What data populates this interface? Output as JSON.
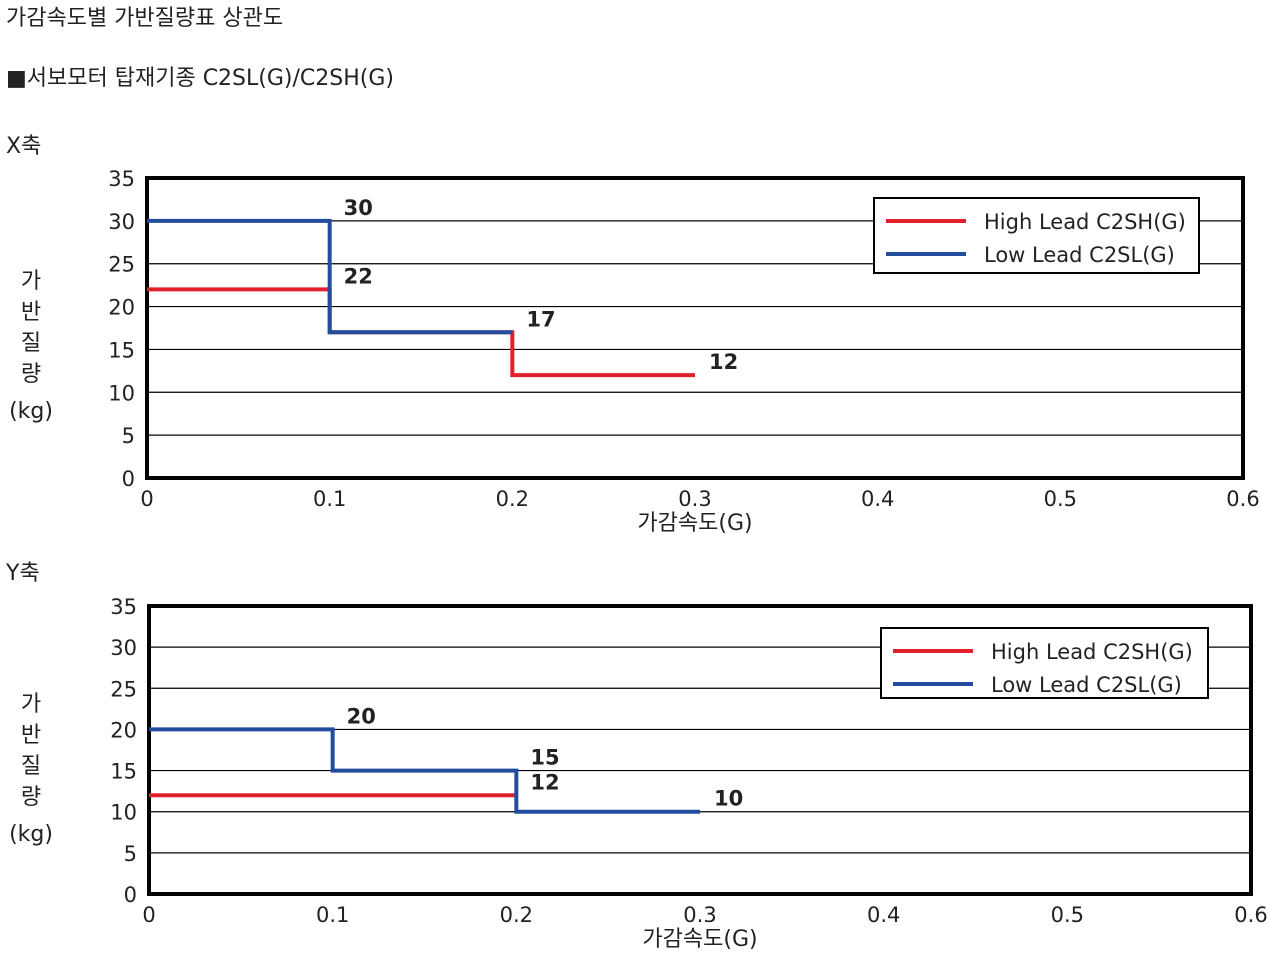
{
  "page": {
    "title": "가감속도별 가반질량표 상관도",
    "subtitle": "■서보모터 탑재기종 C2SL(G)/C2SH(G)"
  },
  "colors": {
    "high": "#e2202b",
    "low": "#224c9c",
    "grid": "#000000"
  },
  "chart_data": [
    {
      "type": "line",
      "title": "X축",
      "xlabel": "가감속도(G)",
      "ylabel": "가반질량(kg)",
      "xlim": [
        0,
        0.6
      ],
      "ylim": [
        0,
        35
      ],
      "x_ticks": [
        "0",
        "0.1",
        "0.2",
        "0.3",
        "0.4",
        "0.5",
        "0.6"
      ],
      "y_ticks": [
        "35",
        "30",
        "25",
        "20",
        "15",
        "10",
        "5",
        "0"
      ],
      "grid": true,
      "legend": "top-right",
      "step": true,
      "series": [
        {
          "name": "High Lead C2SH(G)",
          "color": "#e2202b",
          "points": [
            [
              0,
              22
            ],
            [
              0.1,
              22
            ],
            [
              0.1,
              17
            ],
            [
              0.2,
              17
            ],
            [
              0.2,
              12
            ],
            [
              0.3,
              12
            ]
          ]
        },
        {
          "name": "Low Lead C2SL(G)",
          "color": "#224c9c",
          "points": [
            [
              0,
              30
            ],
            [
              0.1,
              30
            ],
            [
              0.1,
              17
            ],
            [
              0.2,
              17
            ]
          ]
        }
      ],
      "data_labels": [
        {
          "x": 0.1,
          "y": 30,
          "text": "30"
        },
        {
          "x": 0.1,
          "y": 22,
          "text": "22"
        },
        {
          "x": 0.2,
          "y": 17,
          "text": "17"
        },
        {
          "x": 0.3,
          "y": 12,
          "text": "12"
        }
      ]
    },
    {
      "type": "line",
      "title": "Y축",
      "xlabel": "가감속도(G)",
      "ylabel": "가반질량(kg)",
      "xlim": [
        0,
        0.6
      ],
      "ylim": [
        0,
        35
      ],
      "x_ticks": [
        "0",
        "0.1",
        "0.2",
        "0.3",
        "0.4",
        "0.5",
        "0.6"
      ],
      "y_ticks": [
        "35",
        "30",
        "25",
        "20",
        "15",
        "10",
        "5",
        "0"
      ],
      "grid": true,
      "legend": "top-right",
      "step": true,
      "series": [
        {
          "name": "High Lead C2SH(G)",
          "color": "#e2202b",
          "points": [
            [
              0,
              12
            ],
            [
              0.2,
              12
            ]
          ]
        },
        {
          "name": "Low Lead C2SL(G)",
          "color": "#224c9c",
          "points": [
            [
              0,
              20
            ],
            [
              0.1,
              20
            ],
            [
              0.1,
              15
            ],
            [
              0.2,
              15
            ],
            [
              0.2,
              10
            ],
            [
              0.3,
              10
            ]
          ]
        }
      ],
      "data_labels": [
        {
          "x": 0.1,
          "y": 20,
          "text": "20"
        },
        {
          "x": 0.2,
          "y": 15,
          "text": "15"
        },
        {
          "x": 0.2,
          "y": 12,
          "text": "12"
        },
        {
          "x": 0.3,
          "y": 10,
          "text": "10"
        }
      ]
    }
  ]
}
